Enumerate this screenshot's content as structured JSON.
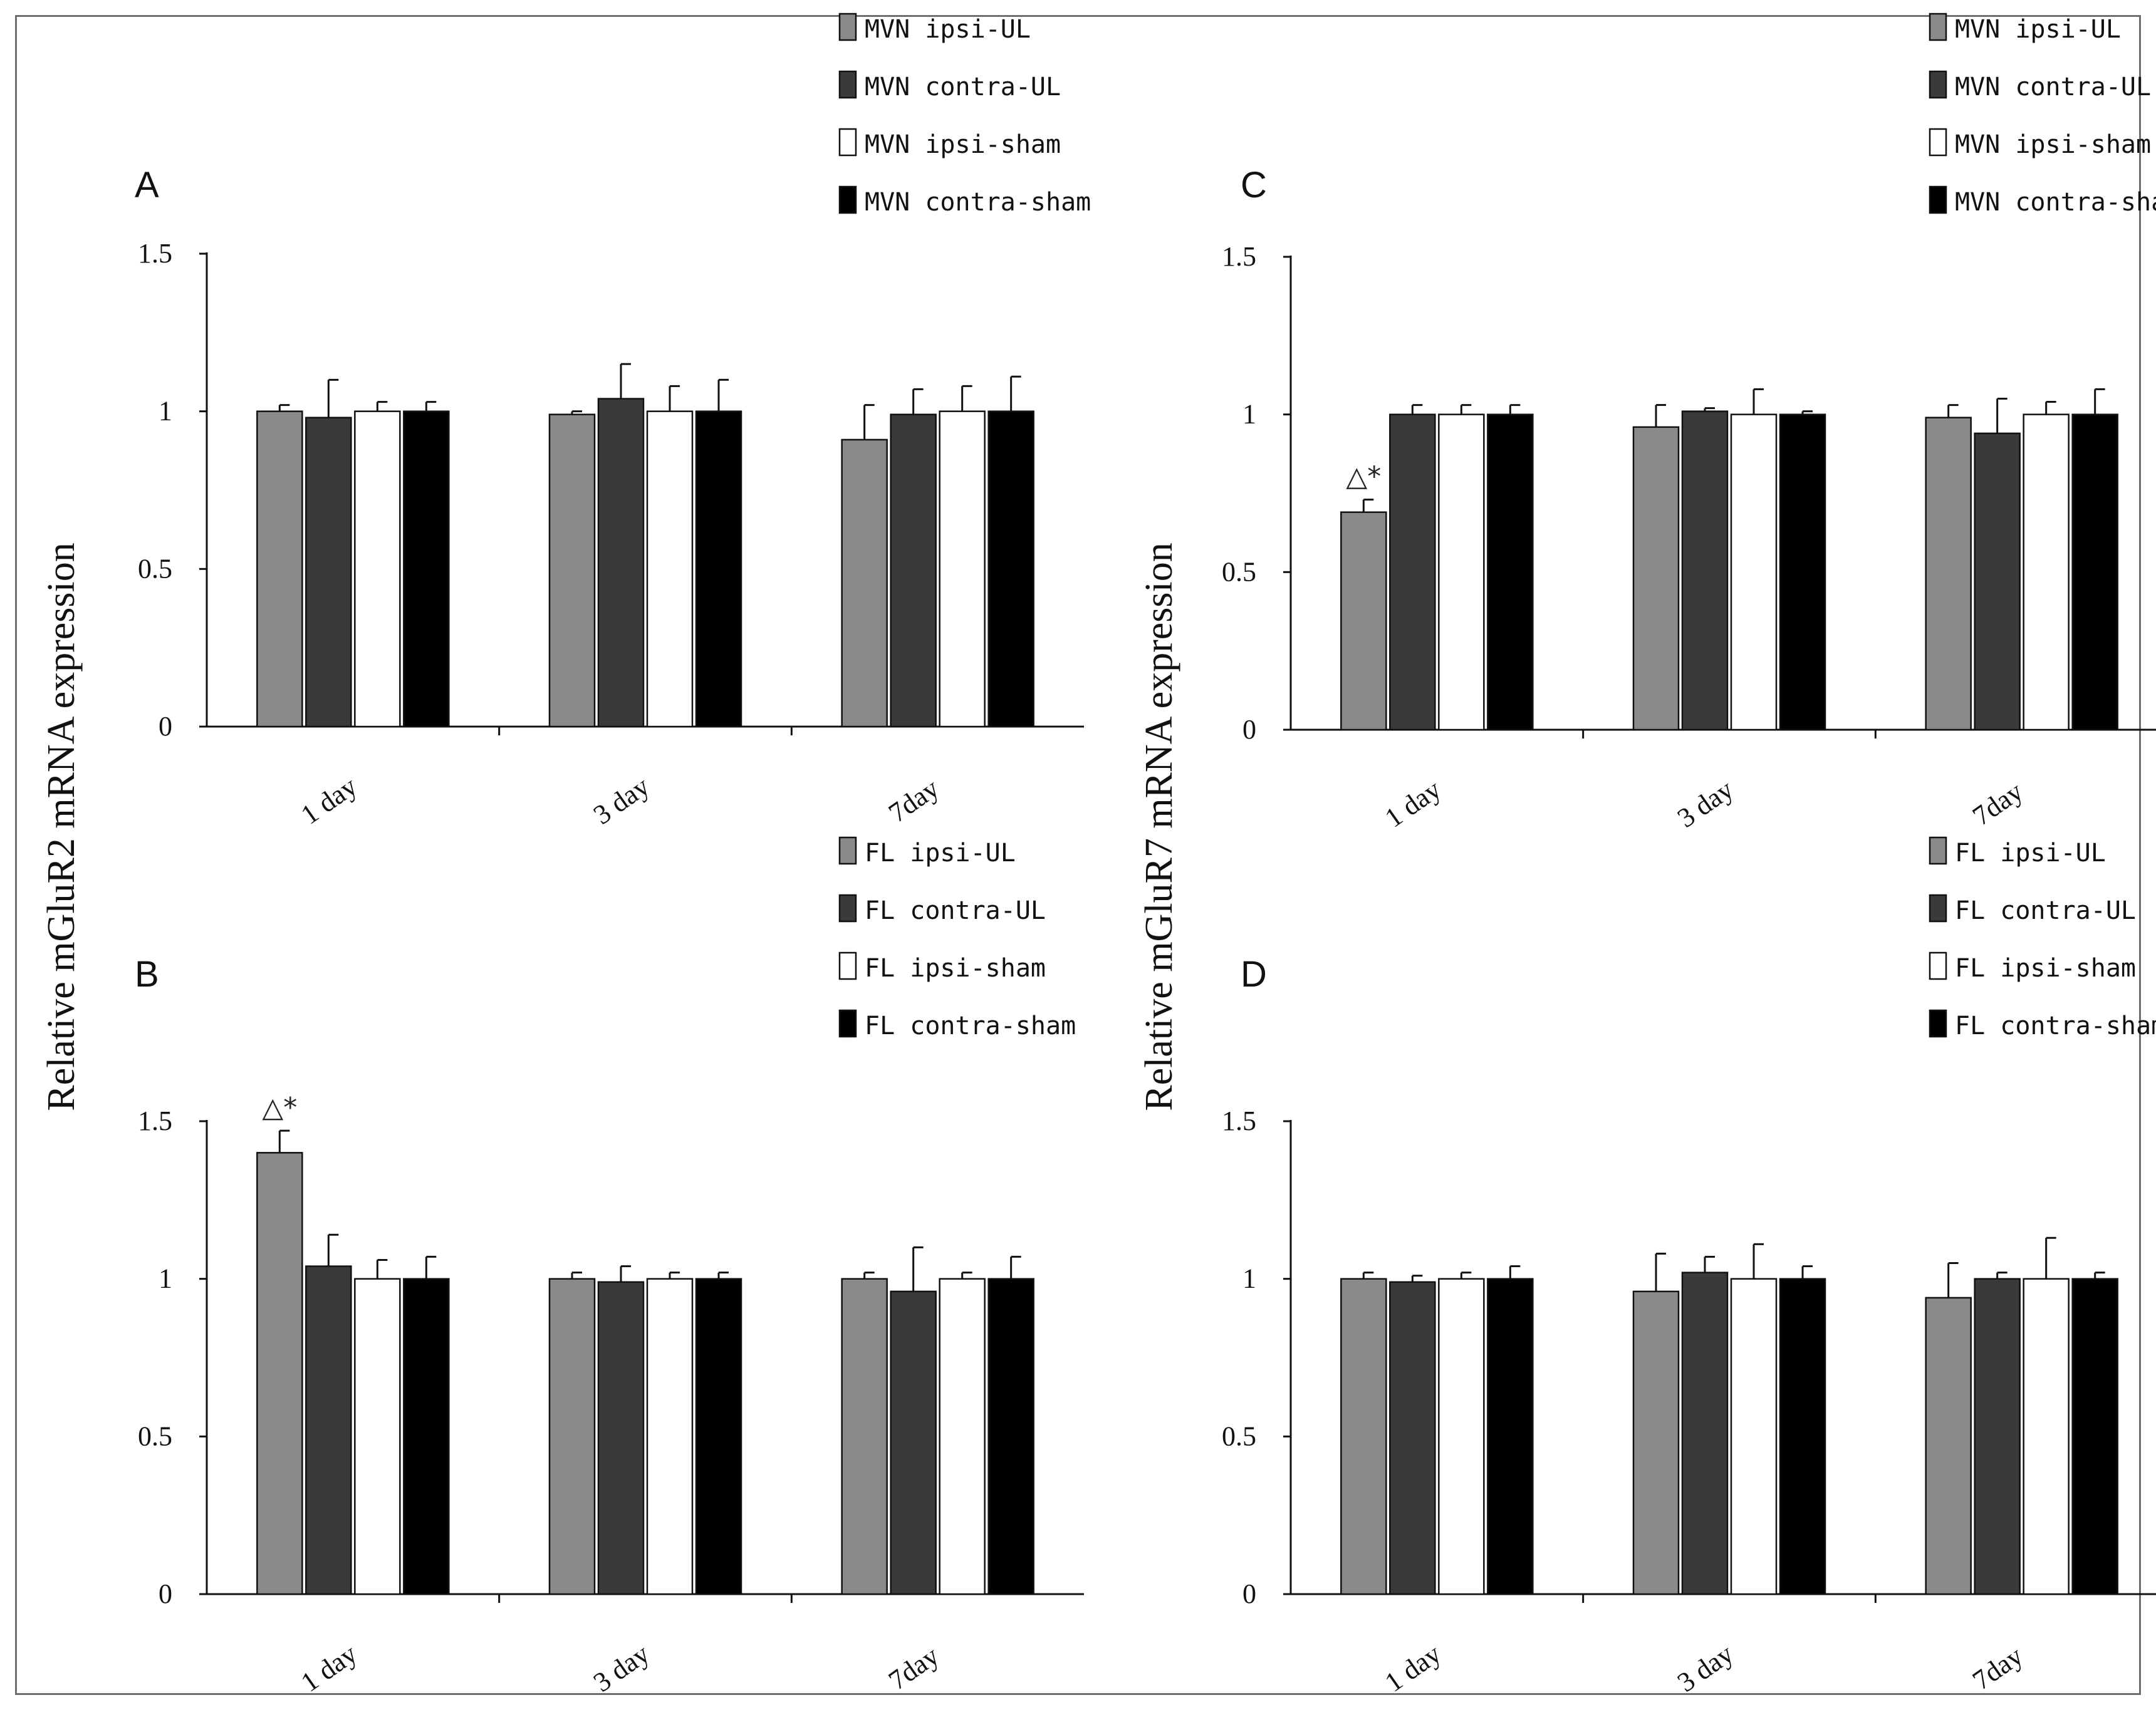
{
  "colors": {
    "ipsi_UL": "#8a8a8a",
    "contra_UL": "#3a3a3a",
    "ipsi_sham": "#ffffff",
    "contra_sham": "#000000",
    "frame": "#6e6e6e"
  },
  "ylabels": {
    "left": "Relative mGluR2 mRNA expression",
    "right": "Relative mGluR7 mRNA expression"
  },
  "chart_data": [
    {
      "panel": "A",
      "type": "bar",
      "categories": [
        "1 day",
        "3 day",
        "7day"
      ],
      "ylim": [
        0,
        1.5
      ],
      "yticks": [
        "0",
        "0.5",
        "1",
        "1.5"
      ],
      "ylabel": "Relative mGluR2 mRNA expression",
      "legend_position": "top-right",
      "series": [
        {
          "name": "MVN ipsi-UL",
          "values": [
            1.0,
            0.99,
            0.91
          ],
          "errors": [
            0.02,
            0.0,
            0.0
          ],
          "errors_up": [
            0.02,
            0.01,
            0.11
          ]
        },
        {
          "name": "MVN contra-UL",
          "values": [
            0.98,
            1.04,
            0.99
          ],
          "errors_up": [
            0.12,
            0.11,
            0.08
          ]
        },
        {
          "name": "MVN ipsi-sham",
          "values": [
            1.0,
            1.0,
            1.0
          ],
          "errors_up": [
            0.03,
            0.08,
            0.08
          ]
        },
        {
          "name": "MVN contra-sham",
          "values": [
            1.0,
            1.0,
            1.0
          ],
          "errors_up": [
            0.03,
            0.1,
            0.11
          ]
        }
      ],
      "annotations": []
    },
    {
      "panel": "B",
      "type": "bar",
      "categories": [
        "1 day",
        "3 day",
        "7day"
      ],
      "ylim": [
        0,
        1.5
      ],
      "yticks": [
        "0",
        "0.5",
        "1",
        "1.5"
      ],
      "ylabel": "Relative mGluR2 mRNA expression",
      "legend_position": "top-right",
      "series": [
        {
          "name": "FL ipsi-UL",
          "values": [
            1.4,
            1.0,
            1.0
          ],
          "errors_up": [
            0.07,
            0.02,
            0.02
          ]
        },
        {
          "name": "FL contra-UL",
          "values": [
            1.04,
            0.99,
            0.96
          ],
          "errors_up": [
            0.1,
            0.05,
            0.14
          ]
        },
        {
          "name": "FL ipsi-sham",
          "values": [
            1.0,
            1.0,
            1.0
          ],
          "errors_up": [
            0.06,
            0.02,
            0.02
          ]
        },
        {
          "name": "FL contra-sham",
          "values": [
            1.0,
            1.0,
            1.0
          ],
          "errors_up": [
            0.07,
            0.02,
            0.07
          ]
        }
      ],
      "annotations": [
        {
          "text": "△*",
          "category": "1 day",
          "series": 0
        }
      ]
    },
    {
      "panel": "C",
      "type": "bar",
      "categories": [
        "1 day",
        "3 day",
        "7day"
      ],
      "ylim": [
        0,
        1.5
      ],
      "yticks": [
        "0",
        "0.5",
        "1",
        "1.5"
      ],
      "ylabel": "Relative mGluR7 mRNA expression",
      "legend_position": "top-right",
      "series": [
        {
          "name": "MVN ipsi-UL",
          "values": [
            0.69,
            0.96,
            0.99
          ],
          "errors_up": [
            0.04,
            0.07,
            0.04
          ]
        },
        {
          "name": "MVN contra-UL",
          "values": [
            1.0,
            1.01,
            0.94
          ],
          "errors_up": [
            0.03,
            0.01,
            0.11
          ]
        },
        {
          "name": "MVN ipsi-sham",
          "values": [
            1.0,
            1.0,
            1.0
          ],
          "errors_up": [
            0.03,
            0.08,
            0.04
          ]
        },
        {
          "name": "MVN contra-sham",
          "values": [
            1.0,
            1.0,
            1.0
          ],
          "errors_up": [
            0.03,
            0.01,
            0.08
          ]
        }
      ],
      "annotations": [
        {
          "text": "△*",
          "category": "1 day",
          "series": 0
        }
      ]
    },
    {
      "panel": "D",
      "type": "bar",
      "categories": [
        "1 day",
        "3 day",
        "7day"
      ],
      "ylim": [
        0,
        1.5
      ],
      "yticks": [
        "0",
        "0.5",
        "1",
        "1.5"
      ],
      "ylabel": "Relative mGluR7 mRNA expression",
      "legend_position": "top-right",
      "series": [
        {
          "name": "FL ipsi-UL",
          "values": [
            1.0,
            0.96,
            0.94
          ],
          "errors_up": [
            0.02,
            0.12,
            0.11
          ]
        },
        {
          "name": "FL contra-UL",
          "values": [
            0.99,
            1.02,
            1.0
          ],
          "errors_up": [
            0.02,
            0.05,
            0.02
          ]
        },
        {
          "name": "FL ipsi-sham",
          "values": [
            1.0,
            1.0,
            1.0
          ],
          "errors_up": [
            0.02,
            0.11,
            0.13
          ]
        },
        {
          "name": "FL contra-sham",
          "values": [
            1.0,
            1.0,
            1.0
          ],
          "errors_up": [
            0.04,
            0.04,
            0.02
          ]
        }
      ],
      "annotations": []
    }
  ]
}
